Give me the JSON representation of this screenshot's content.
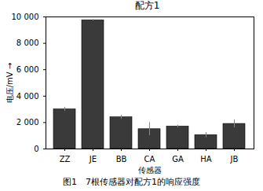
{
  "chart_data": {
    "type": "bar",
    "title": "配方1",
    "caption": "图1　7根传感器对配方1的响应强度",
    "x_label": "传感器",
    "y_label": "电压/mV",
    "categories": [
      "ZZ",
      "JE",
      "BB",
      "CA",
      "GA",
      "HA",
      "JB"
    ],
    "values": [
      3000,
      9750,
      2400,
      1500,
      1700,
      1050,
      1900
    ],
    "errors": [
      150,
      60,
      150,
      500,
      100,
      200,
      300
    ],
    "color": "#3a3a3a",
    "ylim": [
      0,
      10000
    ],
    "yticks": [
      0,
      {
        "value": 2000,
        "label": "2 000"
      },
      {
        "value": 4000,
        "label": "4 000"
      },
      {
        "value": 6000,
        "label": "6 000"
      },
      {
        "value": 8000,
        "label": "8 000"
      },
      {
        "value": 10000,
        "label": "10 000"
      }
    ],
    "grid": false
  }
}
